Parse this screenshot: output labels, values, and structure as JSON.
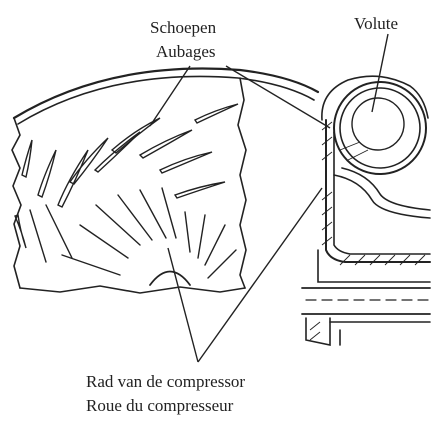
{
  "labels": {
    "blades_nl": "Schoepen",
    "blades_fr": "Aubages",
    "volute": "Volute",
    "wheel_nl": "Rad van de compressor",
    "wheel_fr": "Roue du compresseur"
  },
  "colors": {
    "ink": "#222222",
    "background": "#ffffff"
  }
}
